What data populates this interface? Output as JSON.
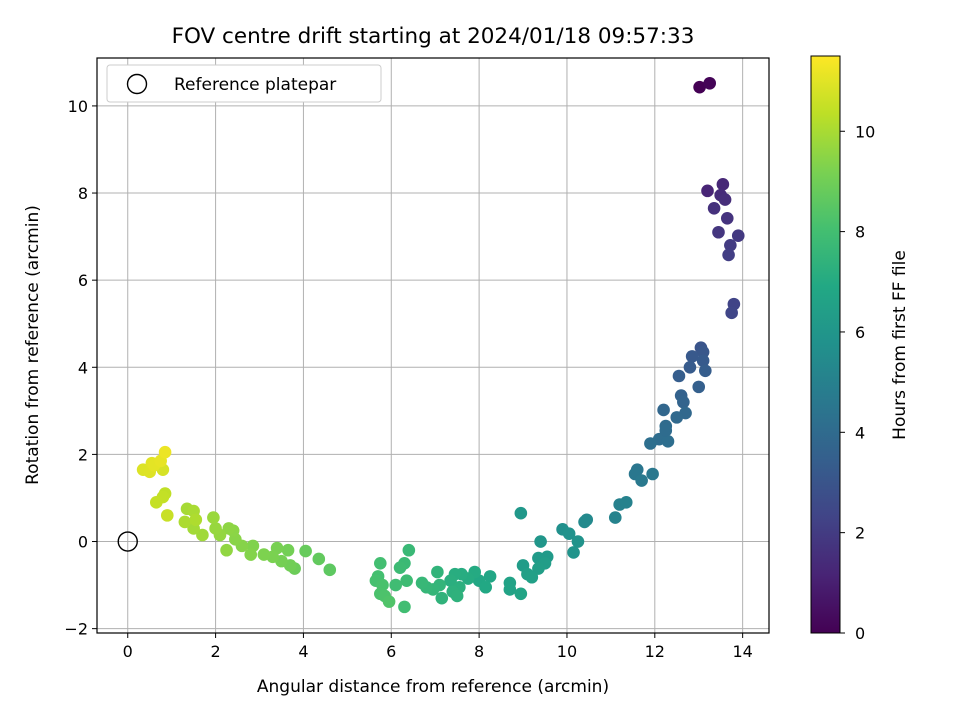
{
  "chart_data": {
    "type": "scatter",
    "title": "FOV centre drift starting at 2024/01/18 09:57:33",
    "xlabel": "Angular distance from reference (arcmin)",
    "ylabel": "Rotation from reference (arcmin)",
    "xlim": [
      -0.7,
      14.6
    ],
    "ylim": [
      -2.1,
      11.1
    ],
    "xticks": [
      0,
      2,
      4,
      6,
      8,
      10,
      12,
      14
    ],
    "yticks": [
      -2,
      0,
      2,
      4,
      6,
      8,
      10
    ],
    "grid": true,
    "legend": {
      "placement": "top-left",
      "entries": [
        "Reference platepar"
      ]
    },
    "reference_point": {
      "x": 0,
      "y": 0
    },
    "colorbar": {
      "label": "Hours from first FF file",
      "range": [
        0,
        11.5
      ],
      "ticks": [
        0,
        2,
        4,
        6,
        8,
        10
      ],
      "colormap": "viridis"
    },
    "series": [
      {
        "points": [
          [
            13.02,
            10.43,
            0.0
          ],
          [
            13.25,
            10.52,
            0.1
          ],
          [
            13.2,
            8.05,
            1.2
          ],
          [
            13.55,
            8.2,
            1.3
          ],
          [
            13.5,
            7.95,
            1.4
          ],
          [
            13.6,
            7.85,
            1.5
          ],
          [
            13.35,
            7.65,
            1.6
          ],
          [
            13.65,
            7.42,
            1.7
          ],
          [
            13.45,
            7.1,
            1.8
          ],
          [
            13.9,
            7.02,
            1.9
          ],
          [
            13.72,
            6.8,
            2.0
          ],
          [
            13.68,
            6.58,
            2.1
          ],
          [
            13.8,
            5.45,
            2.3
          ],
          [
            13.75,
            5.25,
            2.4
          ],
          [
            13.05,
            4.45,
            3.0
          ],
          [
            13.1,
            4.35,
            3.1
          ],
          [
            12.85,
            4.25,
            3.2
          ],
          [
            13.1,
            4.15,
            3.25
          ],
          [
            12.8,
            4.0,
            3.3
          ],
          [
            13.15,
            3.92,
            3.35
          ],
          [
            12.55,
            3.8,
            3.4
          ],
          [
            13.0,
            3.55,
            3.5
          ],
          [
            12.6,
            3.35,
            3.6
          ],
          [
            12.65,
            3.2,
            3.7
          ],
          [
            12.2,
            3.02,
            3.8
          ],
          [
            12.7,
            2.95,
            3.85
          ],
          [
            12.5,
            2.85,
            3.9
          ],
          [
            12.25,
            2.65,
            4.0
          ],
          [
            12.1,
            2.35,
            4.1
          ],
          [
            12.3,
            2.3,
            4.15
          ],
          [
            11.9,
            2.25,
            4.2
          ],
          [
            12.25,
            2.55,
            4.05
          ],
          [
            11.6,
            1.65,
            4.5
          ],
          [
            11.55,
            1.55,
            4.55
          ],
          [
            11.95,
            1.55,
            4.6
          ],
          [
            11.7,
            1.4,
            4.65
          ],
          [
            11.2,
            0.85,
            5.0
          ],
          [
            11.35,
            0.9,
            5.05
          ],
          [
            11.1,
            0.55,
            5.1
          ],
          [
            10.45,
            0.5,
            5.4
          ],
          [
            10.4,
            0.45,
            5.45
          ],
          [
            9.9,
            0.28,
            5.7
          ],
          [
            10.05,
            0.18,
            5.8
          ],
          [
            10.25,
            0.0,
            5.85
          ],
          [
            10.15,
            -0.25,
            5.9
          ],
          [
            9.4,
            0.0,
            6.0
          ],
          [
            8.95,
            0.65,
            6.1
          ],
          [
            9.55,
            -0.35,
            6.2
          ],
          [
            9.35,
            -0.38,
            6.25
          ],
          [
            9.0,
            -0.55,
            6.3
          ],
          [
            9.5,
            -0.5,
            6.35
          ],
          [
            9.35,
            -0.62,
            6.4
          ],
          [
            9.1,
            -0.75,
            6.45
          ],
          [
            9.2,
            -0.82,
            6.5
          ],
          [
            8.7,
            -0.95,
            6.6
          ],
          [
            8.7,
            -1.1,
            6.65
          ],
          [
            8.95,
            -1.2,
            6.7
          ],
          [
            8.25,
            -0.8,
            6.8
          ],
          [
            8.0,
            -0.9,
            6.85
          ],
          [
            8.15,
            -1.05,
            6.9
          ],
          [
            7.9,
            -0.7,
            7.0
          ],
          [
            7.75,
            -0.85,
            7.05
          ],
          [
            7.6,
            -0.75,
            7.1
          ],
          [
            7.45,
            -0.75,
            7.15
          ],
          [
            7.35,
            -0.9,
            7.2
          ],
          [
            7.55,
            -1.05,
            7.25
          ],
          [
            7.4,
            -1.15,
            7.3
          ],
          [
            7.5,
            -1.25,
            7.35
          ],
          [
            7.15,
            -1.3,
            7.4
          ],
          [
            7.05,
            -0.7,
            7.45
          ],
          [
            7.1,
            -1.0,
            7.5
          ],
          [
            6.95,
            -1.1,
            7.55
          ],
          [
            6.8,
            -1.05,
            7.6
          ],
          [
            6.7,
            -0.95,
            7.65
          ],
          [
            6.4,
            -0.2,
            7.7
          ],
          [
            6.3,
            -0.5,
            7.75
          ],
          [
            6.2,
            -0.6,
            7.8
          ],
          [
            6.35,
            -0.9,
            7.85
          ],
          [
            6.1,
            -1.0,
            7.9
          ],
          [
            6.3,
            -1.5,
            7.95
          ],
          [
            5.75,
            -0.5,
            8.0
          ],
          [
            5.7,
            -0.8,
            8.05
          ],
          [
            5.65,
            -0.9,
            8.1
          ],
          [
            5.8,
            -1.0,
            8.15
          ],
          [
            5.75,
            -1.2,
            8.2
          ],
          [
            5.85,
            -1.25,
            8.25
          ],
          [
            5.95,
            -1.38,
            8.3
          ],
          [
            4.6,
            -0.65,
            8.6
          ],
          [
            4.35,
            -0.4,
            8.7
          ],
          [
            4.05,
            -0.22,
            8.8
          ],
          [
            3.8,
            -0.62,
            8.9
          ],
          [
            3.7,
            -0.55,
            9.0
          ],
          [
            3.65,
            -0.2,
            9.05
          ],
          [
            3.5,
            -0.45,
            9.1
          ],
          [
            3.4,
            -0.15,
            9.15
          ],
          [
            3.3,
            -0.35,
            9.2
          ],
          [
            3.1,
            -0.3,
            9.25
          ],
          [
            2.85,
            -0.1,
            9.3
          ],
          [
            2.8,
            -0.3,
            9.35
          ],
          [
            2.6,
            -0.1,
            9.4
          ],
          [
            2.45,
            0.05,
            9.45
          ],
          [
            2.4,
            0.25,
            9.5
          ],
          [
            2.3,
            0.3,
            9.55
          ],
          [
            2.25,
            -0.2,
            9.6
          ],
          [
            2.1,
            0.15,
            9.65
          ],
          [
            2.0,
            0.3,
            9.7
          ],
          [
            1.95,
            0.55,
            9.75
          ],
          [
            1.7,
            0.15,
            9.85
          ],
          [
            1.5,
            0.3,
            9.9
          ],
          [
            1.35,
            0.75,
            9.95
          ],
          [
            1.5,
            0.7,
            10.0
          ],
          [
            1.3,
            0.45,
            10.05
          ],
          [
            1.55,
            0.5,
            10.1
          ],
          [
            0.85,
            1.1,
            10.4
          ],
          [
            0.8,
            1.02,
            10.45
          ],
          [
            0.65,
            0.9,
            10.5
          ],
          [
            0.9,
            0.6,
            10.55
          ],
          [
            0.8,
            1.65,
            10.8
          ],
          [
            0.35,
            1.65,
            10.9
          ],
          [
            0.5,
            1.6,
            10.95
          ],
          [
            0.55,
            1.8,
            11.0
          ],
          [
            0.6,
            1.75,
            11.05
          ],
          [
            0.75,
            1.85,
            11.1
          ],
          [
            0.85,
            2.05,
            11.2
          ]
        ]
      }
    ]
  }
}
